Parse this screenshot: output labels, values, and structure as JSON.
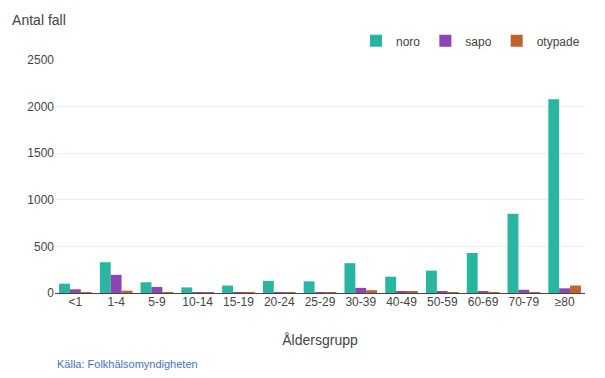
{
  "chart_data": {
    "type": "bar",
    "title": "Antal fall",
    "xlabel": "Åldersgrupp",
    "categories": [
      "<1",
      "1-4",
      "5-9",
      "10-14",
      "15-19",
      "20-24",
      "25-29",
      "30-39",
      "40-49",
      "50-59",
      "60-69",
      "70-79",
      "≥80"
    ],
    "series": [
      {
        "name": "noro",
        "color": "#2ab5a0",
        "values": [
          100,
          330,
          115,
          60,
          80,
          130,
          125,
          320,
          175,
          240,
          430,
          850,
          2080
        ]
      },
      {
        "name": "sapo",
        "color": "#8B45B5",
        "values": [
          40,
          195,
          65,
          5,
          8,
          10,
          8,
          55,
          20,
          15,
          15,
          35,
          50
        ]
      },
      {
        "name": "otypade",
        "color": "#C0622B",
        "values": [
          10,
          25,
          10,
          5,
          5,
          5,
          5,
          30,
          15,
          8,
          10,
          10,
          80
        ]
      }
    ],
    "ylim": [
      0,
      2500
    ],
    "yticks": [
      0,
      500,
      1000,
      1500,
      2000,
      2500
    ],
    "grid": true,
    "legend": "top",
    "annotations": [
      {
        "text": "Källa: Folkhälsomyndigheten",
        "color": "#4472C4"
      }
    ]
  }
}
